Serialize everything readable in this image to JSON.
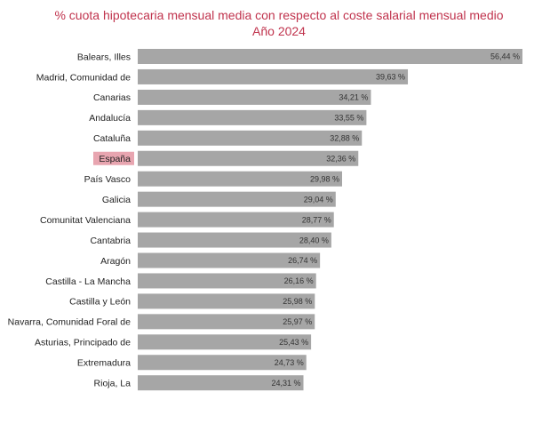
{
  "chart_data": {
    "type": "bar",
    "orientation": "horizontal",
    "title": "% cuota hipotecaria mensual media con respecto al coste salarial mensual medio",
    "subtitle": "Año 2024",
    "xlabel": "",
    "ylabel": "",
    "xlim": [
      0,
      60
    ],
    "grid": false,
    "legend": "none",
    "bar_color": "#a6a6a6",
    "highlight_color": "#e8a5b0",
    "highlight_category": "España",
    "categories": [
      "Balears, Illes",
      "Madrid, Comunidad de",
      "Canarias",
      "Andalucía",
      "Cataluña",
      "España",
      "País Vasco",
      "Galicia",
      "Comunitat Valenciana",
      "Cantabria",
      "Aragón",
      "Castilla - La Mancha",
      "Castilla y León",
      "Navarra, Comunidad Foral de",
      "Asturias, Principado de",
      "Extremadura",
      "Rioja, La"
    ],
    "values": [
      56.44,
      39.63,
      34.21,
      33.55,
      32.88,
      32.36,
      29.98,
      29.04,
      28.77,
      28.4,
      26.74,
      26.16,
      25.98,
      25.97,
      25.43,
      24.73,
      24.31
    ],
    "value_labels": [
      "56,44 %",
      "39,63 %",
      "34,21 %",
      "33,55 %",
      "32,88 %",
      "32,36 %",
      "29,98 %",
      "29,04 %",
      "28,77 %",
      "28,40 %",
      "26,74 %",
      "26,16 %",
      "25,98 %",
      "25,97 %",
      "25,43 %",
      "24,73 %",
      "24,31 %"
    ]
  }
}
